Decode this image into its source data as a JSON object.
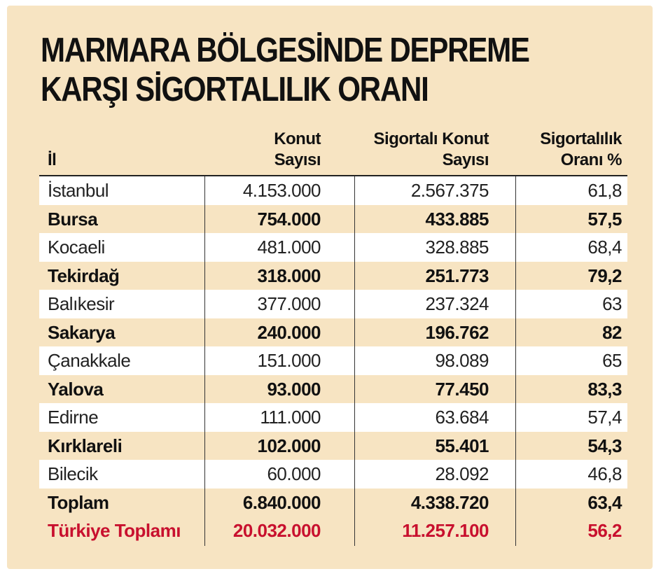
{
  "title": {
    "line1": "MARMARA BÖLGESİNDE DEPREME",
    "line2": "KARŞI SİGORTALILIK ORANI"
  },
  "chart_data": {
    "type": "table",
    "columns": [
      {
        "line1": "İl",
        "line2": ""
      },
      {
        "line1": "Konut",
        "line2": "Sayısı"
      },
      {
        "line1": "Sigortalı Konut",
        "line2": "Sayısı"
      },
      {
        "line1": "Sigortalılık",
        "line2": "Oranı %"
      }
    ],
    "rows": [
      {
        "il": "İstanbul",
        "konut": "4.153.000",
        "sigortali": "2.567.375",
        "oran": "61,8",
        "style": "alt"
      },
      {
        "il": "Bursa",
        "konut": "754.000",
        "sigortali": "433.885",
        "oran": "57,5",
        "style": "bold"
      },
      {
        "il": "Kocaeli",
        "konut": "481.000",
        "sigortali": "328.885",
        "oran": "68,4",
        "style": "alt"
      },
      {
        "il": "Tekirdağ",
        "konut": "318.000",
        "sigortali": "251.773",
        "oran": "79,2",
        "style": "bold"
      },
      {
        "il": "Balıkesir",
        "konut": "377.000",
        "sigortali": "237.324",
        "oran": "63",
        "style": "alt"
      },
      {
        "il": "Sakarya",
        "konut": "240.000",
        "sigortali": "196.762",
        "oran": "82",
        "style": "bold"
      },
      {
        "il": "Çanakkale",
        "konut": "151.000",
        "sigortali": "98.089",
        "oran": "65",
        "style": "alt"
      },
      {
        "il": "Yalova",
        "konut": "93.000",
        "sigortali": "77.450",
        "oran": "83,3",
        "style": "bold"
      },
      {
        "il": "Edirne",
        "konut": "111.000",
        "sigortali": "63.684",
        "oran": "57,4",
        "style": "alt"
      },
      {
        "il": "Kırklareli",
        "konut": "102.000",
        "sigortali": "55.401",
        "oran": "54,3",
        "style": "bold"
      },
      {
        "il": "Bilecik",
        "konut": "60.000",
        "sigortali": "28.092",
        "oran": "46,8",
        "style": "alt"
      },
      {
        "il": "Toplam",
        "konut": "6.840.000",
        "sigortali": "4.338.720",
        "oran": "63,4",
        "style": "bold"
      },
      {
        "il": "Türkiye Toplamı",
        "konut": "20.032.000",
        "sigortali": "11.257.100",
        "oran": "56,2",
        "style": "red"
      }
    ],
    "colors": {
      "background": "#f7e4c2",
      "alt_row": "#ffffff",
      "highlight": "#c8102e"
    }
  }
}
